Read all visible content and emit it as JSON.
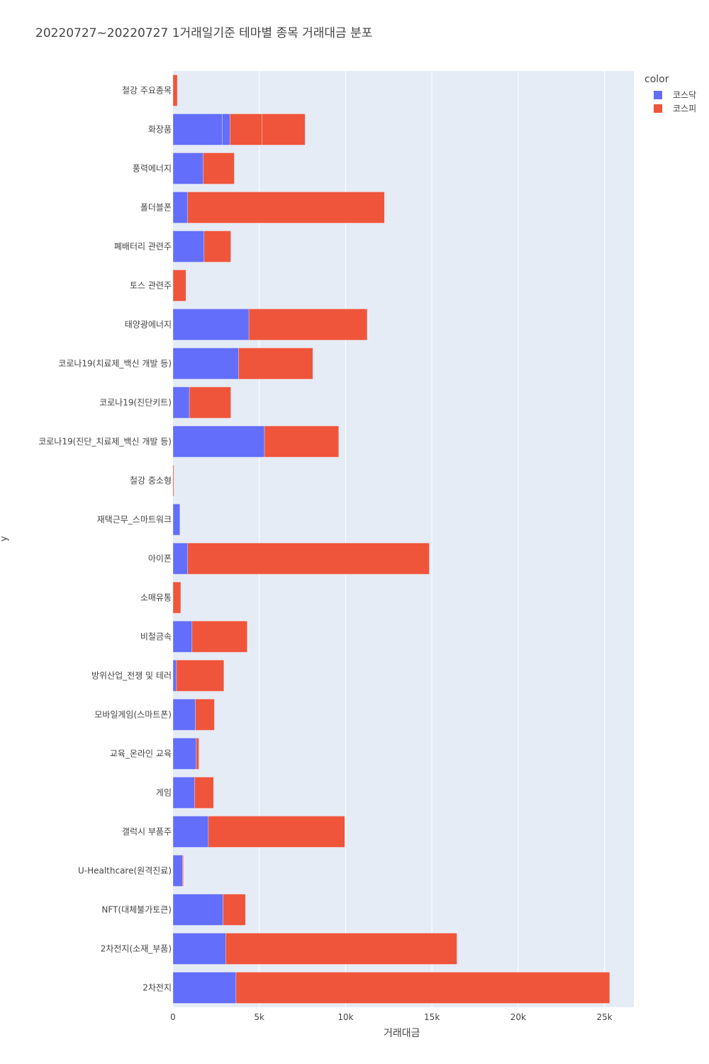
{
  "chart_data": {
    "type": "bar",
    "orientation": "horizontal",
    "barmode": "stack",
    "title": "20220727~20220727 1거래일기준 테마별 종목 거래대금 분포",
    "xlabel": "거래대금",
    "ylabel": "y",
    "xlim": [
      0,
      26700
    ],
    "x_ticks": [
      {
        "value": 0,
        "label": "0"
      },
      {
        "value": 5000,
        "label": "5k"
      },
      {
        "value": 10000,
        "label": "10k"
      },
      {
        "value": 15000,
        "label": "15k"
      },
      {
        "value": 20000,
        "label": "20k"
      },
      {
        "value": 25000,
        "label": "25k"
      }
    ],
    "legend_title": "color",
    "legend_position": "top-right",
    "grid": true,
    "categories": [
      "2차전지",
      "2차전지(소재_부품)",
      "NFT(대체불가토큰)",
      "U-Healthcare(원격진료)",
      "갤럭시 부품주",
      "게임",
      "교육_온라인 교육",
      "모바일게임(스마트폰)",
      "방위산업_전쟁 및 테러",
      "비철금속",
      "소매유통",
      "아이폰",
      "재택근무_스마트워크",
      "철강 중소형",
      "코로나19(진단_치료제_백신 개발 등)",
      "코로나19(진단키트)",
      "코로나19(치료제_백신 개발 등)",
      "태양광에너지",
      "토스 관련주",
      "폐배터리 관련주",
      "폴더블폰",
      "풍력에너지",
      "화장품",
      "철강 주요종목"
    ],
    "series": [
      {
        "name": "코스닥",
        "color": "#636efa",
        "segments": [
          [
            3650
          ],
          [
            3050
          ],
          [
            2900
          ],
          [
            550
          ],
          [
            2050
          ],
          [
            1250
          ],
          [
            1350
          ],
          [
            1300
          ],
          [
            200
          ],
          [
            1100
          ],
          [
            0
          ],
          [
            850
          ],
          [
            400
          ],
          [
            0
          ],
          [
            5300
          ],
          [
            950
          ],
          [
            3800
          ],
          [
            4400
          ],
          [
            0
          ],
          [
            1800
          ],
          [
            850
          ],
          [
            1750
          ],
          [
            2850,
            450
          ],
          [
            0
          ]
        ],
        "values": [
          3650,
          3050,
          2900,
          550,
          2050,
          1250,
          1350,
          1300,
          200,
          1100,
          0,
          850,
          400,
          0,
          5300,
          950,
          3800,
          4400,
          0,
          1800,
          850,
          1750,
          3300,
          0
        ]
      },
      {
        "name": "코스피",
        "color": "#ef553b",
        "segments": [
          [
            21650
          ],
          [
            13400
          ],
          [
            1300
          ],
          [
            50
          ],
          [
            7900
          ],
          [
            1100
          ],
          [
            150
          ],
          [
            1100
          ],
          [
            2750
          ],
          [
            3200
          ],
          [
            450
          ],
          [
            14000
          ],
          [
            0
          ],
          [
            50
          ],
          [
            4300
          ],
          [
            2400
          ],
          [
            4300
          ],
          [
            6850
          ],
          [
            750
          ],
          [
            1550
          ],
          [
            11400
          ],
          [
            1800
          ],
          [
            1850,
            2500
          ],
          [
            250
          ]
        ],
        "values": [
          21650,
          13400,
          1300,
          50,
          7900,
          1100,
          150,
          1100,
          2750,
          3200,
          450,
          14000,
          0,
          50,
          4300,
          2400,
          4300,
          6850,
          750,
          1550,
          11400,
          1800,
          4350,
          250
        ]
      }
    ]
  }
}
